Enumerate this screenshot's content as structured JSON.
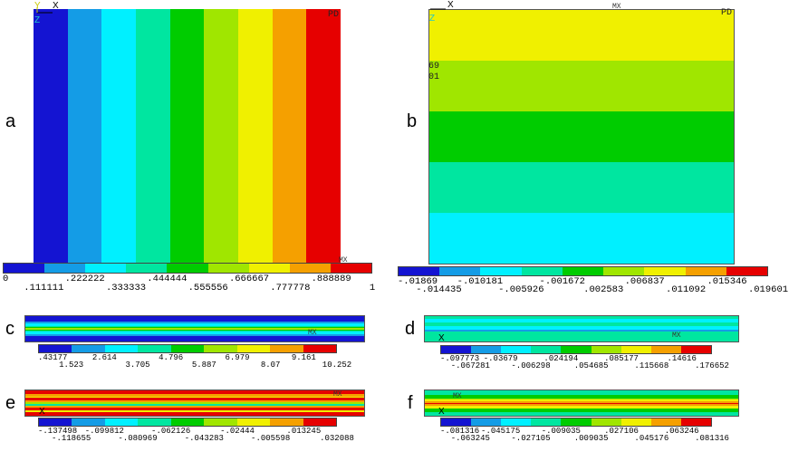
{
  "palette": [
    "#1414d2",
    "#149ce6",
    "#00f0ff",
    "#00e6a0",
    "#00cc00",
    "#a0e600",
    "#f0f000",
    "#f5a000",
    "#e60000"
  ],
  "panels": {
    "a": {
      "letter": "a",
      "view_label": "PD",
      "axis_x": "X",
      "axis_y": "Y",
      "axis_z": "Z",
      "corner_mx": "MX",
      "bands": [
        0,
        1,
        2,
        3,
        4,
        5,
        6,
        7,
        8
      ],
      "legend_top": [
        "0",
        ".222222",
        ".444444",
        ".666667",
        ".888889"
      ],
      "legend_bot": [
        ".111111",
        ".333333",
        ".555556",
        ".777778",
        "1"
      ],
      "legend_top_last": "",
      "legend_first": "0"
    },
    "b": {
      "letter": "b",
      "view_label": "PD",
      "axis_x": "X",
      "axis_z": "Z",
      "corner_mx": "MX",
      "frag1": "69",
      "frag2": "01",
      "bands": [
        6,
        5,
        4,
        3,
        2
      ],
      "legend_top": [
        "-.01869",
        "-.010181",
        "-.001672",
        ".006837",
        ".015346"
      ],
      "legend_bot": [
        "-.014435",
        "-.005926",
        ".002583",
        ".011092",
        ".019601"
      ]
    },
    "c": {
      "letter": "c",
      "corner_mx": "MX",
      "legend_top": [
        ".43177",
        "2.614",
        "4.796",
        "6.979",
        "9.161"
      ],
      "legend_bot": [
        "1.523",
        "3.705",
        "5.887",
        "8.07",
        "10.252"
      ]
    },
    "d": {
      "letter": "d",
      "axis_x": "X",
      "corner_mx": "MX",
      "legend_top": [
        "-.097773",
        "-.03679",
        ".024194",
        ".085177",
        ".14616"
      ],
      "legend_bot": [
        "-.067281",
        "-.006298",
        ".054685",
        ".115668",
        ".176652"
      ]
    },
    "e": {
      "letter": "e",
      "axis_x": "X",
      "corner_mx": "MX",
      "legend_top": [
        "-.137498",
        "-.099812",
        "-.062126",
        "-.02444",
        ".013245"
      ],
      "legend_bot": [
        "-.118655",
        "-.080969",
        "-.043283",
        "-.005598",
        ".032088"
      ]
    },
    "f": {
      "letter": "f",
      "axis_x": "X",
      "corner_mx": "MX",
      "legend_top": [
        "-.081316",
        "-.045175",
        "-.009035",
        ".027106",
        ".063246"
      ],
      "legend_bot": [
        "-.063245",
        "-.027105",
        ".009035",
        ".045176",
        ".081316"
      ]
    }
  }
}
